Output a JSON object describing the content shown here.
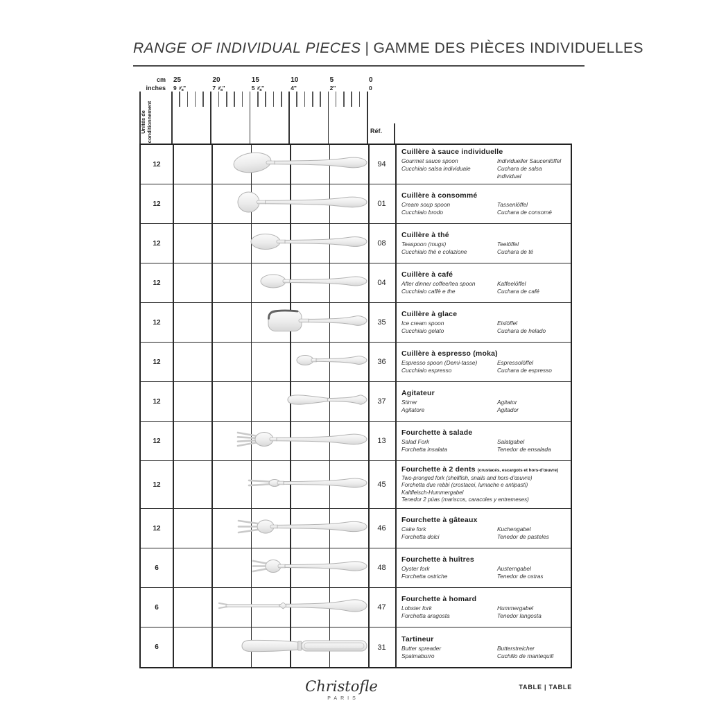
{
  "header": {
    "title_en": "RANGE OF INDIVIDUAL PIECES",
    "separator": "|",
    "title_fr": "GAMME DES PIÈCES INDIVIDUELLES"
  },
  "ruler": {
    "unit_top": "cm",
    "unit_bottom": "inches",
    "marks": [
      {
        "cm": "25",
        "inches": "9 ⅞\""
      },
      {
        "cm": "20",
        "inches": "7 ⅞\""
      },
      {
        "cm": "15",
        "inches": "5 ⅞\""
      },
      {
        "cm": "10",
        "inches": "4\""
      },
      {
        "cm": "5",
        "inches": "2\""
      },
      {
        "cm": "0",
        "inches": "0"
      }
    ]
  },
  "columns": {
    "packaging_label": "Unités de conditionnement",
    "ref_label": "Réf."
  },
  "rows": [
    {
      "qty": "12",
      "ref": "94",
      "title": "Cuillère à sauce individuelle",
      "en": "Gourmet sauce spoon",
      "de": "Individueller Saucenlöffel",
      "it": "Cucchiaio salsa individuale",
      "es": "Cuchara de salsa individual",
      "image": {
        "kind": "spoon-wide",
        "length_cm": 17.4
      }
    },
    {
      "qty": "12",
      "ref": "01",
      "title": "Cuillère à consommé",
      "en": "Cream soup spoon",
      "de": "Tassenlöffel",
      "it": "Cucchiaio brodo",
      "es": "Cuchara de consomé",
      "image": {
        "kind": "spoon-round",
        "length_cm": 16.8
      }
    },
    {
      "qty": "12",
      "ref": "08",
      "title": "Cuillère à thé",
      "en": "Teaspoon (mugs)",
      "de": "Teelöffel",
      "it": "Cucchiaio thè e colazione",
      "es": "Cuchara de té",
      "image": {
        "kind": "spoon-oval",
        "length_cm": 15.2
      }
    },
    {
      "qty": "12",
      "ref": "04",
      "title": "Cuillère à café",
      "en": "After dinner coffee/tea spoon",
      "de": "Kaffeelöffel",
      "it": "Cucchiaio caffè e the",
      "es": "Cuchara de café",
      "image": {
        "kind": "spoon-small",
        "length_cm": 13.9
      }
    },
    {
      "qty": "12",
      "ref": "35",
      "title": "Cuillère à glace",
      "en": "Ice cream spoon",
      "de": "Eislöffel",
      "it": "Cucchiaio gelato",
      "es": "Cuchara de helado",
      "image": {
        "kind": "spoon-shovel",
        "length_cm": 12.9
      }
    },
    {
      "qty": "12",
      "ref": "36",
      "title": "Cuillère à espresso (moka)",
      "en": "Espresso spoon (Demi-tasse)",
      "de": "Espressolöffel",
      "it": "Cucchiaio espresso",
      "es": "Cuchara de espresso",
      "image": {
        "kind": "spoon-tiny",
        "length_cm": 9.3
      }
    },
    {
      "qty": "12",
      "ref": "37",
      "title": "Agitateur",
      "en": "Stirrer",
      "de": "Agitator",
      "it": "Agitatore",
      "es": "Agitador",
      "image": {
        "kind": "stirrer",
        "length_cm": 10.5
      }
    },
    {
      "qty": "12",
      "ref": "13",
      "title": "Fourchette à salade",
      "en": "Salad Fork",
      "de": "Salatgabel",
      "it": "Forchetta insalata",
      "es": "Tenedor de ensalada",
      "image": {
        "kind": "fork-4",
        "length_cm": 17.0
      }
    },
    {
      "qty": "12",
      "ref": "45",
      "title": "Fourchette à 2 dents",
      "title_note": "(crustacés, escargots et hors-d'œuvre)",
      "lines": [
        "Two-pronged fork (shellfish, snails and hors-d'œuvre)",
        "Forchetta due rebbi (crostacei, lumache e antipasti)",
        "Kaltfleisch-Hummergabel",
        "Tenedor 2 púas (mariscos, caracoles y entremeses)"
      ],
      "image": {
        "kind": "fork-2",
        "length_cm": 15.6
      }
    },
    {
      "qty": "12",
      "ref": "46",
      "title": "Fourchette à gâteaux",
      "en": "Cake fork",
      "de": "Kuchengabel",
      "it": "Forchetta dolci",
      "es": "Tenedor de pasteles",
      "image": {
        "kind": "fork-3",
        "length_cm": 16.9
      }
    },
    {
      "qty": "6",
      "ref": "48",
      "title": "Fourchette à huîtres",
      "en": "Oyster fork",
      "de": "Austerngabel",
      "it": "Forchetta ostriche",
      "es": "Tenedor de ostras",
      "image": {
        "kind": "fork-3-short",
        "length_cm": 15.1
      }
    },
    {
      "qty": "6",
      "ref": "47",
      "title": "Fourchette à homard",
      "en": "Lobster fork",
      "de": "Hummergabel",
      "it": "Forchetta aragosta",
      "es": "Tenedor langosta",
      "image": {
        "kind": "lobster-fork",
        "length_cm": 19.4
      }
    },
    {
      "qty": "6",
      "ref": "31",
      "title": "Tartineur",
      "en": "Butter spreader",
      "de": "Butterstreicher",
      "it": "Spalmaburro",
      "es": "Cuchillo de mantequill",
      "image": {
        "kind": "spreader",
        "length_cm": 16.3
      }
    }
  ],
  "footer": {
    "brand": "Christofle",
    "brand_sub": "PARIS",
    "right": "TABLE | TABLE"
  },
  "colors": {
    "line": "#222222",
    "metal_light": "#fbfbfb",
    "metal_dark": "#d8d8d8",
    "metal_stroke": "#b3b3b3"
  }
}
